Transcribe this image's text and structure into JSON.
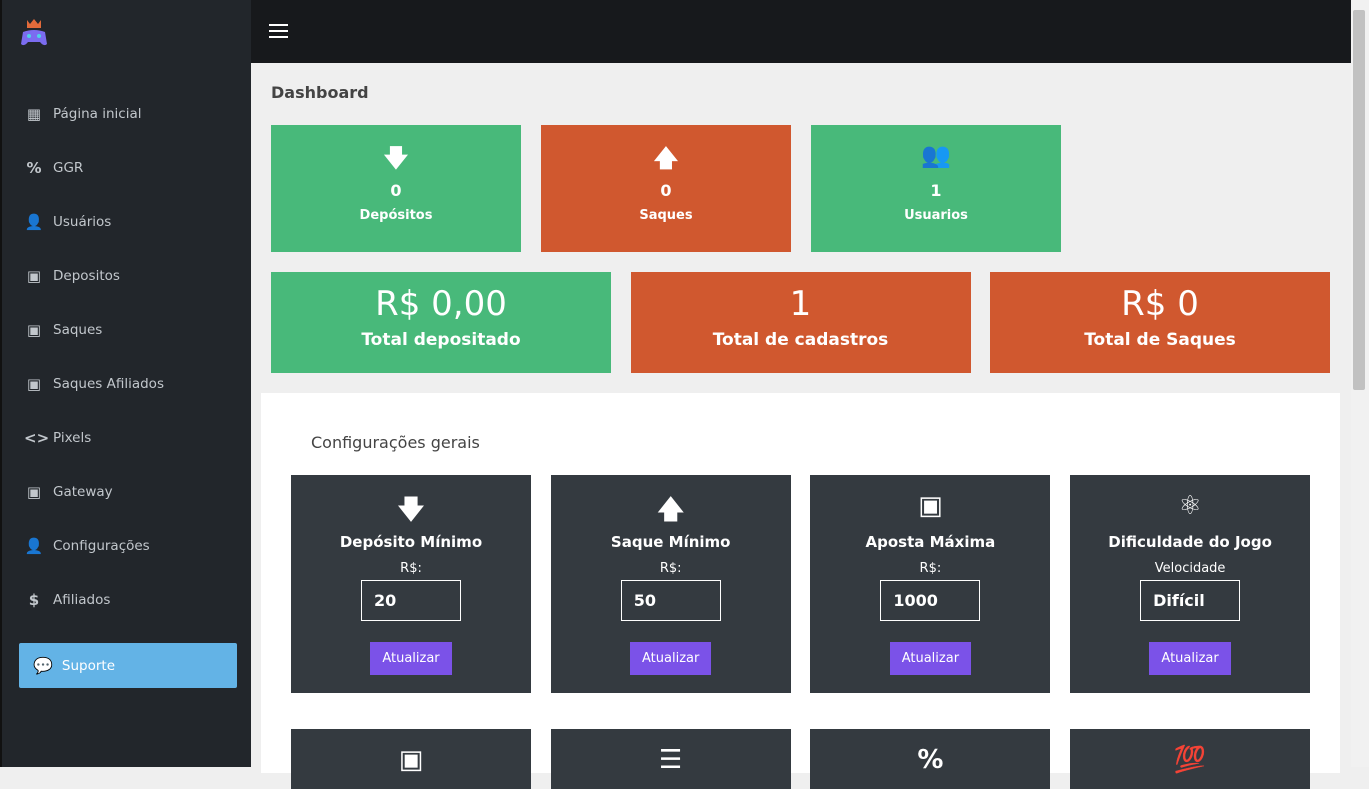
{
  "sidebar": {
    "items": [
      {
        "label": "Página inicial",
        "icon": "dashboard-icon",
        "glyph": "▦"
      },
      {
        "label": "GGR",
        "icon": "percent-icon",
        "glyph": "%"
      },
      {
        "label": "Usuários",
        "icon": "user-icon",
        "glyph": "👤"
      },
      {
        "label": "Depositos",
        "icon": "money-icon",
        "glyph": "▣"
      },
      {
        "label": "Saques",
        "icon": "money-icon",
        "glyph": "▣"
      },
      {
        "label": "Saques Afiliados",
        "icon": "money-icon",
        "glyph": "▣"
      },
      {
        "label": "Pixels",
        "icon": "code-icon",
        "glyph": "<>"
      },
      {
        "label": "Gateway",
        "icon": "money-icon",
        "glyph": "▣"
      },
      {
        "label": "Configurações",
        "icon": "user-icon",
        "glyph": "👤"
      },
      {
        "label": "Afiliados",
        "icon": "dollar-icon",
        "glyph": "$"
      }
    ],
    "support": "Suporte"
  },
  "page_title": "Dashboard",
  "stats": [
    {
      "value": "0",
      "label": "Depósitos",
      "icon": "arrow-down-icon",
      "glyph": "🡇",
      "color": "#48b97a"
    },
    {
      "value": "0",
      "label": "Saques",
      "icon": "arrow-up-icon",
      "glyph": "🡅",
      "color": "#d0582f"
    },
    {
      "value": "1",
      "label": "Usuarios",
      "icon": "users-icon",
      "glyph": "👥",
      "color": "#48b97a"
    }
  ],
  "totals": [
    {
      "value": "R$ 0,00",
      "label": "Total depositado",
      "color": "#48b97a"
    },
    {
      "value": "1",
      "label": "Total de cadastros",
      "color": "#d0582f"
    },
    {
      "value": "R$ 0",
      "label": "Total de Saques",
      "color": "#d0582f"
    }
  ],
  "config": {
    "title": "Configurações gerais",
    "cards": [
      {
        "title": "Depósito Mínimo",
        "sub": "R$:",
        "value": "20",
        "button": "Atualizar",
        "icon": "arrow-down-icon",
        "glyph": "🡇"
      },
      {
        "title": "Saque Mínimo",
        "sub": "R$:",
        "value": "50",
        "button": "Atualizar",
        "icon": "arrow-up-icon",
        "glyph": "🡅"
      },
      {
        "title": "Aposta Máxima",
        "sub": "R$:",
        "value": "1000",
        "button": "Atualizar",
        "icon": "money-icon",
        "glyph": "▣"
      },
      {
        "title": "Dificuldade do Jogo",
        "sub": "Velocidade",
        "value": "Difícil",
        "button": "Atualizar",
        "icon": "network-icon",
        "glyph": "⚛"
      }
    ],
    "more_cards": [
      {
        "icon": "money-icon",
        "glyph": "▣"
      },
      {
        "icon": "filter-icon",
        "glyph": "☰"
      },
      {
        "icon": "percent-icon",
        "glyph": "%"
      },
      {
        "icon": "banknote-icon",
        "glyph": "💯"
      }
    ]
  },
  "colors": {
    "accent": "#7b52e8",
    "support": "#63b3e6",
    "green": "#48b97a",
    "orange": "#d0582f"
  }
}
